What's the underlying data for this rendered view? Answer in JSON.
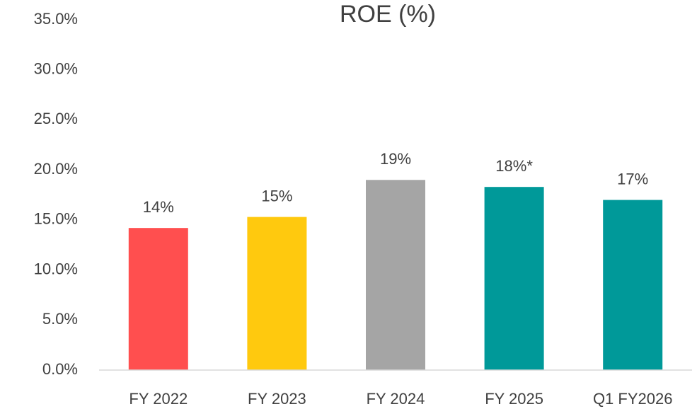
{
  "chart_data": {
    "type": "bar",
    "title": "ROE (%)",
    "categories": [
      "FY 2022",
      "FY 2023",
      "FY 2024",
      "FY 2025",
      "Q1 FY2026"
    ],
    "values": [
      14.2,
      15.3,
      19.0,
      18.3,
      17.0
    ],
    "value_labels": [
      "14%",
      "15%",
      "19%",
      "18%*",
      "17%"
    ],
    "colors": [
      "#ff4f4f",
      "#ffc90e",
      "#a5a5a5",
      "#009999",
      "#009999"
    ],
    "ylim": [
      0,
      35
    ],
    "yticks": [
      {
        "value": 0,
        "label": "0.0%"
      },
      {
        "value": 5,
        "label": "5.0%"
      },
      {
        "value": 10,
        "label": "10.0%"
      },
      {
        "value": 15,
        "label": "15.0%"
      },
      {
        "value": 20,
        "label": "20.0%"
      },
      {
        "value": 25,
        "label": "25.0%"
      },
      {
        "value": 30,
        "label": "30.0%"
      },
      {
        "value": 35,
        "label": "35.0%"
      }
    ],
    "grid": false
  }
}
